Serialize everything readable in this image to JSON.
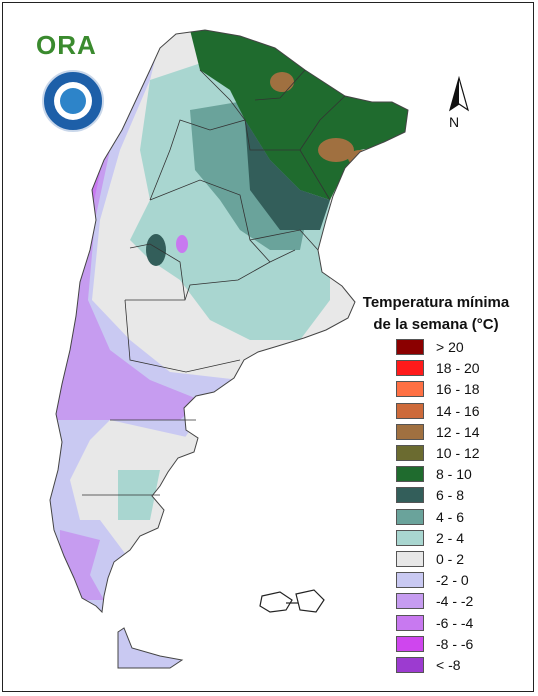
{
  "logo": {
    "text": "ORA",
    "icon": "ora-logo"
  },
  "seal": {
    "icon": "smn-seal-emblem"
  },
  "north_arrow": {
    "label": "N",
    "icon": "north-arrow-icon"
  },
  "legend": {
    "title_line1": "Temperatura mínima",
    "title_line2": "de la semana (°C)",
    "items": [
      {
        "label": "> 20",
        "color": "#8b0000"
      },
      {
        "label": "18 - 20",
        "color": "#ff1a1a"
      },
      {
        "label": "16 - 18",
        "color": "#ff7043"
      },
      {
        "label": "14 - 16",
        "color": "#cd6a3a"
      },
      {
        "label": "12 - 14",
        "color": "#a07040"
      },
      {
        "label": "10 - 12",
        "color": "#6b6b30"
      },
      {
        "label": "8 - 10",
        "color": "#1f6b2e"
      },
      {
        "label": "6 - 8",
        "color": "#335e5a"
      },
      {
        "label": "4 - 6",
        "color": "#6aa39b"
      },
      {
        "label": "2 - 4",
        "color": "#a9d6d0"
      },
      {
        "label": "0 - 2",
        "color": "#e8e8e8"
      },
      {
        "label": "-2 - 0",
        "color": "#c9c9f2"
      },
      {
        "label": "-4 - -2",
        "color": "#c69cf0"
      },
      {
        "label": "-6 - -4",
        "color": "#c879f0"
      },
      {
        "label": "-8 - -6",
        "color": "#cf46ee"
      },
      {
        "label": "< -8",
        "color": "#9c3bd0"
      }
    ]
  }
}
